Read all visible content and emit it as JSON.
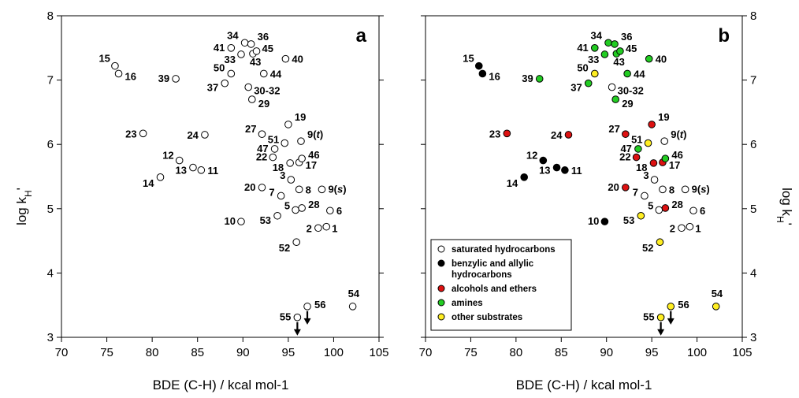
{
  "chart_data": {
    "type": "scatter",
    "xlabel": "BDE (C-H) / kcal mol-1",
    "ylabel": "log kH'",
    "xlim": [
      70,
      105
    ],
    "ylim": [
      3,
      8
    ],
    "xticks": [
      "70",
      "75",
      "80",
      "85",
      "90",
      "95",
      "100",
      "105"
    ],
    "yticks": [
      "3",
      "4",
      "5",
      "6",
      "7",
      "8"
    ],
    "panels": [
      "a",
      "b"
    ],
    "category_colors": {
      "sat": "#ffffff",
      "benz": "#000000",
      "alc": "#dd1111",
      "amine": "#22cc22",
      "other": "#ffee22"
    },
    "legend": {
      "placement": "bottom-left of panel b",
      "entries": [
        {
          "key": "sat",
          "lines": [
            "saturated hydrocarbons"
          ]
        },
        {
          "key": "benz",
          "lines": [
            "benzylic and allylic",
            "hydrocarbons"
          ]
        },
        {
          "key": "alc",
          "lines": [
            "alcohols and ethers"
          ]
        },
        {
          "key": "amine",
          "lines": [
            "amines"
          ]
        },
        {
          "key": "other",
          "lines": [
            "other substrates"
          ]
        }
      ]
    },
    "points": [
      {
        "label": "1",
        "x": 99.2,
        "y": 4.72,
        "cat": "sat"
      },
      {
        "label": "2",
        "x": 98.3,
        "y": 4.7,
        "cat": "sat"
      },
      {
        "label": "3",
        "x": 95.3,
        "y": 5.45,
        "cat": "sat"
      },
      {
        "label": "5",
        "x": 95.8,
        "y": 4.98,
        "cat": "sat"
      },
      {
        "label": "6",
        "x": 99.6,
        "y": 4.97,
        "cat": "sat"
      },
      {
        "label": "7",
        "x": 94.2,
        "y": 5.2,
        "cat": "sat"
      },
      {
        "label": "8",
        "x": 96.2,
        "y": 5.3,
        "cat": "sat"
      },
      {
        "label": "9(s)",
        "x": 98.7,
        "y": 5.3,
        "cat": "sat"
      },
      {
        "label": "9(t)",
        "x": 96.4,
        "y": 6.05,
        "cat": "sat"
      },
      {
        "label": "10",
        "x": 89.8,
        "y": 4.8,
        "cat": "benz"
      },
      {
        "label": "11",
        "x": 85.4,
        "y": 5.6,
        "cat": "benz"
      },
      {
        "label": "12",
        "x": 83.0,
        "y": 5.75,
        "cat": "benz"
      },
      {
        "label": "13",
        "x": 84.5,
        "y": 5.64,
        "cat": "benz"
      },
      {
        "label": "14",
        "x": 80.9,
        "y": 5.49,
        "cat": "benz"
      },
      {
        "label": "15",
        "x": 75.9,
        "y": 7.22,
        "cat": "benz"
      },
      {
        "label": "16",
        "x": 76.3,
        "y": 7.1,
        "cat": "benz"
      },
      {
        "label": "17",
        "x": 96.2,
        "y": 5.72,
        "cat": "alc"
      },
      {
        "label": "18",
        "x": 95.2,
        "y": 5.71,
        "cat": "alc"
      },
      {
        "label": "19",
        "x": 95.0,
        "y": 6.31,
        "cat": "alc"
      },
      {
        "label": "20",
        "x": 92.1,
        "y": 5.33,
        "cat": "alc"
      },
      {
        "label": "22",
        "x": 93.3,
        "y": 5.8,
        "cat": "alc"
      },
      {
        "label": "23",
        "x": 79.0,
        "y": 6.17,
        "cat": "alc"
      },
      {
        "label": "24",
        "x": 85.8,
        "y": 6.15,
        "cat": "alc"
      },
      {
        "label": "27",
        "x": 92.1,
        "y": 6.16,
        "cat": "alc"
      },
      {
        "label": "28",
        "x": 96.5,
        "y": 5.01,
        "cat": "alc"
      },
      {
        "label": "29",
        "x": 91.0,
        "y": 6.7,
        "cat": "amine"
      },
      {
        "label": "30-32",
        "x": 90.6,
        "y": 6.89,
        "cat": "sat"
      },
      {
        "label": "33",
        "x": 89.8,
        "y": 7.4,
        "cat": "amine"
      },
      {
        "label": "34",
        "x": 90.2,
        "y": 7.58,
        "cat": "amine"
      },
      {
        "label": "36",
        "x": 90.9,
        "y": 7.56,
        "cat": "amine"
      },
      {
        "label": "37",
        "x": 88.0,
        "y": 6.95,
        "cat": "amine"
      },
      {
        "label": "39",
        "x": 82.6,
        "y": 7.02,
        "cat": "amine"
      },
      {
        "label": "40",
        "x": 94.7,
        "y": 7.33,
        "cat": "amine"
      },
      {
        "label": "41",
        "x": 88.7,
        "y": 7.5,
        "cat": "amine"
      },
      {
        "label": "43",
        "x": 91.1,
        "y": 7.41,
        "cat": "amine"
      },
      {
        "label": "44",
        "x": 92.3,
        "y": 7.1,
        "cat": "amine"
      },
      {
        "label": "45",
        "x": 91.5,
        "y": 7.45,
        "cat": "amine"
      },
      {
        "label": "46",
        "x": 96.5,
        "y": 5.78,
        "cat": "amine"
      },
      {
        "label": "47",
        "x": 93.5,
        "y": 5.93,
        "cat": "amine"
      },
      {
        "label": "50",
        "x": 88.7,
        "y": 7.1,
        "cat": "other"
      },
      {
        "label": "51",
        "x": 94.6,
        "y": 6.02,
        "cat": "other"
      },
      {
        "label": "52",
        "x": 95.9,
        "y": 4.48,
        "cat": "other"
      },
      {
        "label": "53",
        "x": 93.8,
        "y": 4.89,
        "cat": "other"
      },
      {
        "label": "54",
        "x": 102.1,
        "y": 3.48,
        "cat": "other"
      },
      {
        "label": "55",
        "x": 96.0,
        "y": 3.31,
        "cat": "other",
        "arrow": true
      },
      {
        "label": "56",
        "x": 97.1,
        "y": 3.48,
        "cat": "other",
        "arrow": true
      }
    ]
  }
}
